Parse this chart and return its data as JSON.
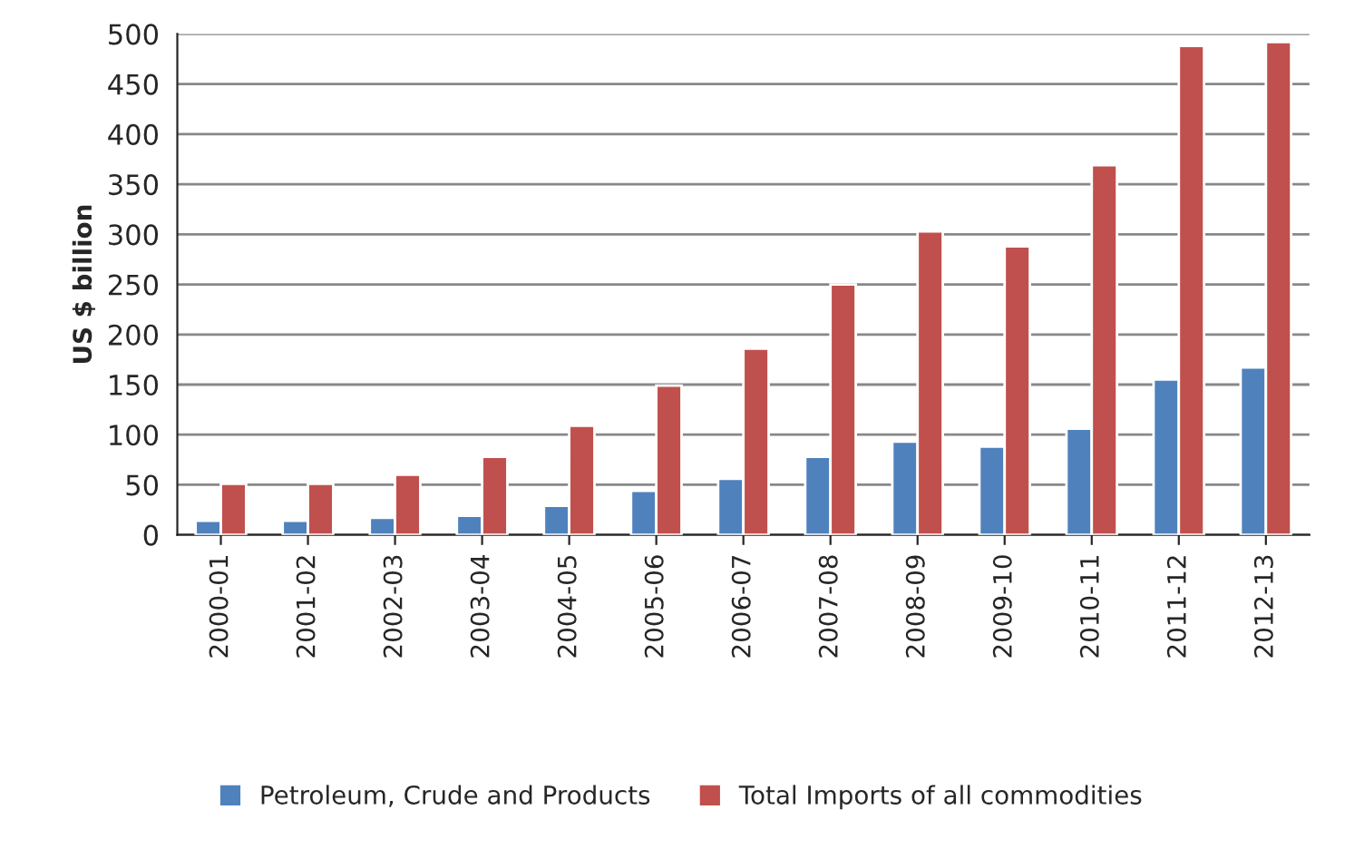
{
  "chart_data": {
    "type": "bar",
    "ylabel": "US $ billion",
    "categories": [
      "2000-01",
      "2001-02",
      "2002-03",
      "2003-04",
      "2004-05",
      "2005-06",
      "2006-07",
      "2007-08",
      "2008-09",
      "2009-10",
      "2010-11",
      "2011-12",
      "2012-13"
    ],
    "series": [
      {
        "name": "Petroleum, Crude and Products",
        "color": "#4f81bd",
        "values": [
          14,
          14,
          17,
          19,
          29,
          44,
          56,
          78,
          93,
          88,
          106,
          155,
          167
        ]
      },
      {
        "name": "Total Imports of all commodities",
        "color": "#c0504d",
        "values": [
          51,
          51,
          60,
          78,
          109,
          149,
          186,
          250,
          303,
          288,
          369,
          488,
          492
        ]
      }
    ],
    "ylim": [
      0,
      500
    ],
    "yticks": [
      0,
      50,
      100,
      150,
      200,
      250,
      300,
      350,
      400,
      450,
      500
    ],
    "grid": "y",
    "legend": "bottom"
  }
}
